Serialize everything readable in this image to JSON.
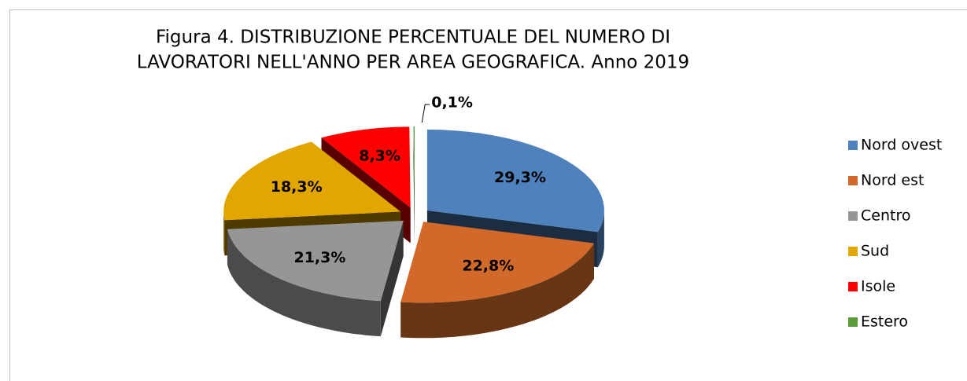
{
  "chart_data": {
    "type": "pie",
    "title": [
      "Figura 4. DISTRIBUZIONE PERCENTUALE DEL NUMERO DI",
      "LAVORATORI NELL'ANNO PER AREA GEOGRAFICA. Anno 2019"
    ],
    "categories": [
      "Nord ovest",
      "Nord est",
      "Centro",
      "Sud",
      "Isole",
      "Estero"
    ],
    "values": [
      29.3,
      22.8,
      21.3,
      18.3,
      8.3,
      0.1
    ],
    "value_labels": [
      "29,3%",
      "22,8%",
      "21,3%",
      "18,3%",
      "8,3%",
      "0,1%"
    ],
    "colors": [
      "#4f81bd",
      "#d0692a",
      "#969696",
      "#e1a600",
      "#ff0000",
      "#5b9b3a"
    ],
    "legend": "right"
  }
}
